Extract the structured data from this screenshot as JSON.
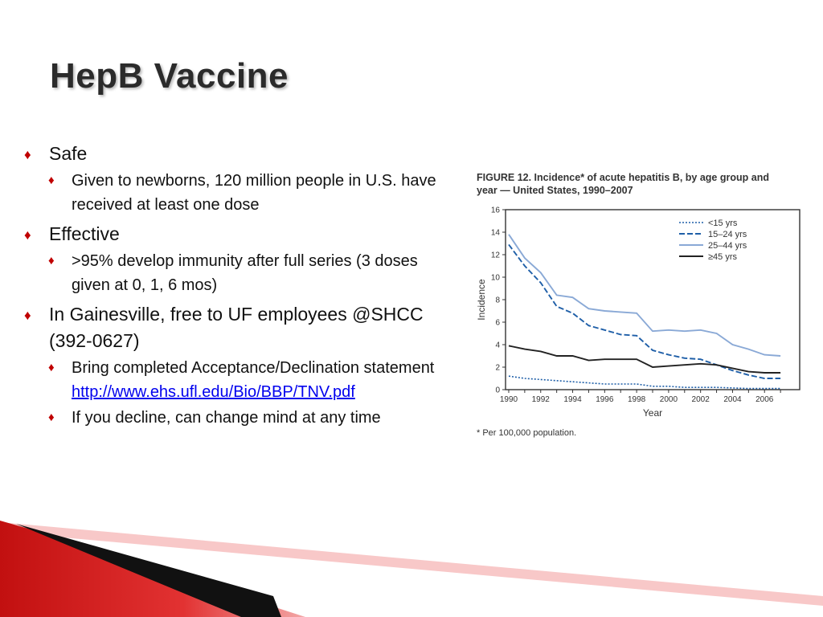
{
  "slide": {
    "title": "HepB Vaccine",
    "bullet_marker": "♦",
    "bullets": [
      {
        "level": 1,
        "text": "Safe"
      },
      {
        "level": 2,
        "text": "Given to newborns, 120 million people in U.S. have received at least one dose"
      },
      {
        "level": 1,
        "text": "Effective"
      },
      {
        "level": 2,
        "text": ">95% develop immunity after full series (3 doses given at 0, 1, 6 mos)"
      },
      {
        "level": 1,
        "text": "In Gainesville, free to UF employees @SHCC (392-0627)"
      },
      {
        "level": 2,
        "text": "Bring completed Acceptance/Declination statement",
        "link": "http://www.ehs.ufl.edu/Bio/BBP/TNV.pdf"
      },
      {
        "level": 2,
        "text": "If you decline, can change mind at any time"
      }
    ]
  },
  "colors": {
    "accent": "#c00000",
    "link": "#0000ee",
    "dark_blue": "#1f5fa8",
    "light_blue": "#8aa9d6",
    "black": "#222222"
  },
  "chart_data": {
    "type": "line",
    "title_lines": [
      "FIGURE 12. Incidence* of acute hepatitis B, by age group and",
      "year — United States, 1990–2007"
    ],
    "footnote": "* Per 100,000 population.",
    "xlabel": "Year",
    "ylabel": "Incidence",
    "x": [
      1990,
      1991,
      1992,
      1993,
      1994,
      1995,
      1996,
      1997,
      1998,
      1999,
      2000,
      2001,
      2002,
      2003,
      2004,
      2005,
      2006,
      2007
    ],
    "xticks": [
      "1990",
      "1992",
      "1994",
      "1996",
      "1998",
      "2000",
      "2002",
      "2004",
      "2006"
    ],
    "yticks": [
      "0",
      "2",
      "4",
      "6",
      "8",
      "10",
      "12",
      "14",
      "16"
    ],
    "xlim": [
      1989.8,
      2008.2
    ],
    "ylim": [
      0,
      16
    ],
    "legend_position": "top-right",
    "series": [
      {
        "name": "<15 yrs",
        "style": "dotted",
        "color": "#1f5fa8",
        "values": [
          1.2,
          1.0,
          0.9,
          0.8,
          0.7,
          0.6,
          0.5,
          0.5,
          0.5,
          0.3,
          0.3,
          0.2,
          0.2,
          0.2,
          0.15,
          0.1,
          0.1,
          0.1
        ]
      },
      {
        "name": "15–24 yrs",
        "style": "dashed",
        "color": "#1f5fa8",
        "values": [
          12.9,
          11.0,
          9.5,
          7.4,
          6.8,
          5.7,
          5.3,
          4.9,
          4.8,
          3.5,
          3.1,
          2.8,
          2.7,
          2.2,
          1.7,
          1.3,
          1.0,
          1.0
        ]
      },
      {
        "name": "25–44 yrs",
        "style": "solid",
        "color": "#8aa9d6",
        "values": [
          13.8,
          11.7,
          10.4,
          8.4,
          8.2,
          7.2,
          7.0,
          6.9,
          6.8,
          5.2,
          5.3,
          5.2,
          5.3,
          5.0,
          4.0,
          3.6,
          3.1,
          3.0
        ]
      },
      {
        "name": "≥45 yrs",
        "style": "solid",
        "color": "#222222",
        "values": [
          3.9,
          3.6,
          3.4,
          3.0,
          3.0,
          2.6,
          2.7,
          2.7,
          2.7,
          2.0,
          2.1,
          2.2,
          2.3,
          2.2,
          1.9,
          1.6,
          1.5,
          1.5
        ]
      }
    ]
  }
}
